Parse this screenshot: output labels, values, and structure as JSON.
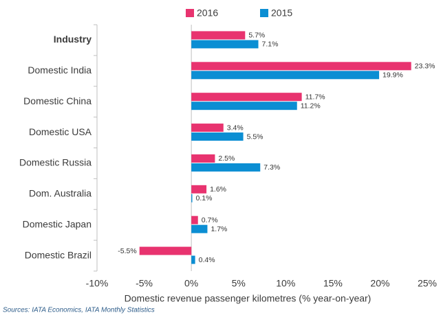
{
  "chart_data": {
    "type": "bar",
    "orientation": "horizontal",
    "categories": [
      "Industry",
      "Domestic India",
      "Domestic China",
      "Domestic USA",
      "Domestic Russia",
      "Dom. Australia",
      "Domestic Japan",
      "Domestic Brazil"
    ],
    "series": [
      {
        "name": "2016",
        "color": "#e8336f",
        "values": [
          5.7,
          23.3,
          11.7,
          3.4,
          2.5,
          1.6,
          0.7,
          -5.5
        ],
        "value_labels": [
          "5.7%",
          "23.3%",
          "11.7%",
          "3.4%",
          "2.5%",
          "1.6%",
          "0.7%",
          "-5.5%"
        ]
      },
      {
        "name": "2015",
        "color": "#0b8ed3",
        "values": [
          7.1,
          19.9,
          11.2,
          5.5,
          7.3,
          0.1,
          1.7,
          0.4
        ],
        "value_labels": [
          "7.1%",
          "19.9%",
          "11.2%",
          "5.5%",
          "7.3%",
          "0.1%",
          "1.7%",
          "0.4%"
        ]
      }
    ],
    "xlim": [
      -10,
      25
    ],
    "xticks": [
      {
        "value": -10,
        "label": "-10%"
      },
      {
        "value": -5,
        "label": "-5%"
      },
      {
        "value": 0,
        "label": "0%"
      },
      {
        "value": 5,
        "label": "5%"
      },
      {
        "value": 10,
        "label": "10%"
      },
      {
        "value": 15,
        "label": "15%"
      },
      {
        "value": 20,
        "label": "20%"
      },
      {
        "value": 25,
        "label": "25%"
      }
    ],
    "x_label": "Domestic revenue passenger kilometres (% year-on-year)",
    "source": "Sources: IATA Economics, IATA Monthly Statistics",
    "legend": "top"
  }
}
